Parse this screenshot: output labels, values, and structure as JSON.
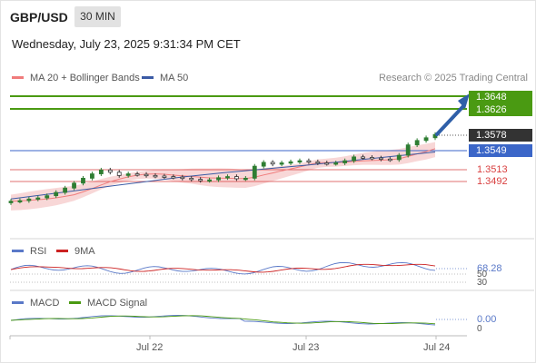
{
  "header": {
    "pair": "GBP/USD",
    "timeframe": "30 MIN",
    "datetime": "Wednesday, July 23, 2025 9:31:34 PM CET"
  },
  "legend": {
    "ma20_label": "MA 20 + Bollinger Bands",
    "ma50_label": "MA 50",
    "credit": "Research © 2025 Trading Central"
  },
  "colors": {
    "ma20": "#f07c7c",
    "ma50": "#3b5ba5",
    "bollinger": "#f5c9c9",
    "resistance": "#4a9a12",
    "pivot": "#3b66c8",
    "support": "#d94040",
    "candle_up": "#2e7d32",
    "candle_down": "#333333",
    "arrow": "#2f5fa8",
    "rsi": "#5a79c8",
    "rsi_ma": "#cc2222",
    "macd": "#5a79c8",
    "macd_signal": "#4a9a12"
  },
  "levels": {
    "resistance": [
      "1.3648",
      "1.3626"
    ],
    "last": "1.3578",
    "pivot": "1.3549",
    "support": [
      "1.3513",
      "1.3492"
    ]
  },
  "rsi": {
    "title": "RSI",
    "ma_title": "9MA",
    "value": "68.28",
    "ticks": [
      "50",
      "30"
    ]
  },
  "macd": {
    "title": "MACD",
    "signal_title": "MACD Signal",
    "value": "0.00",
    "tick": "0"
  },
  "dates": [
    "Jul 22",
    "Jul 23",
    "Jul 24"
  ],
  "chart_data": {
    "type": "line",
    "title": "GBP/USD 30 MIN",
    "series": [
      {
        "name": "MA 20 + Bollinger Bands",
        "description": "price candles (approximate closes)",
        "values": [
          1.3456,
          1.3457,
          1.346,
          1.3462,
          1.3466,
          1.3472,
          1.348,
          1.3489,
          1.3498,
          1.3506,
          1.3513,
          1.3509,
          1.3503,
          1.3506,
          1.3505,
          1.3503,
          1.3502,
          1.3501,
          1.35,
          1.3498,
          1.3496,
          1.3494,
          1.3495,
          1.3499,
          1.3501,
          1.3497,
          1.3498,
          1.352,
          1.3527,
          1.3524,
          1.3526,
          1.3528,
          1.353,
          1.3528,
          1.3526,
          1.3525,
          1.3526,
          1.353,
          1.3537,
          1.3536,
          1.3535,
          1.3533,
          1.3532,
          1.354,
          1.3559,
          1.3567,
          1.3572,
          1.3578
        ]
      },
      {
        "name": "MA 50",
        "values": [
          1.346,
          1.347,
          1.348,
          1.349,
          1.35,
          1.3508,
          1.3515,
          1.3522,
          1.353,
          1.3538,
          1.3546
        ]
      }
    ],
    "ylim": [
      1.344,
      1.366
    ],
    "levels": {
      "resistance": [
        1.3648,
        1.3626
      ],
      "pivot": 1.3549,
      "support": [
        1.3513,
        1.3492
      ],
      "last": 1.3578
    },
    "x_ticks": [
      "Jul 22",
      "Jul 23",
      "Jul 24"
    ],
    "rsi": {
      "last": 68.28,
      "ylim": [
        20,
        80
      ],
      "levels": [
        50,
        30
      ]
    },
    "macd": {
      "last": 0.0
    },
    "grid": false
  }
}
